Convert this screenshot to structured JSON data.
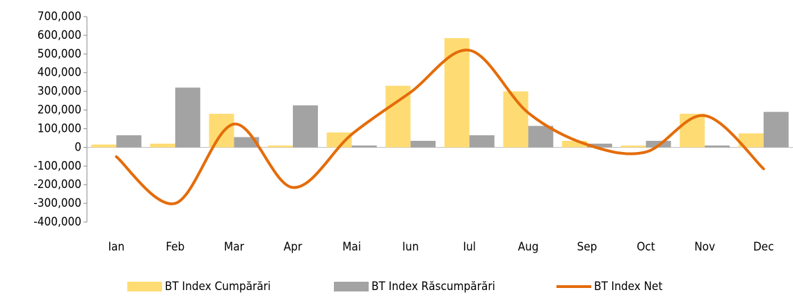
{
  "chart_data": {
    "type": "bar-line",
    "categories": [
      "Ian",
      "Feb",
      "Mar",
      "Apr",
      "Mai",
      "Iun",
      "Iul",
      "Aug",
      "Sep",
      "Oct",
      "Nov",
      "Dec"
    ],
    "series": [
      {
        "name": "BT Index Cumpărări",
        "type": "bar",
        "color": "#ffdc73",
        "values": [
          15000,
          20000,
          180000,
          10000,
          80000,
          330000,
          585000,
          300000,
          35000,
          10000,
          180000,
          75000
        ]
      },
      {
        "name": "BT Index Răscumpărări",
        "type": "bar",
        "color": "#a3a3a3",
        "values": [
          65000,
          320000,
          55000,
          225000,
          10000,
          35000,
          65000,
          115000,
          20000,
          35000,
          10000,
          190000
        ]
      },
      {
        "name": "BT Index Net",
        "type": "line",
        "color": "#e46c0a",
        "values": [
          -50000,
          -300000,
          125000,
          -215000,
          70000,
          295000,
          520000,
          185000,
          15000,
          -25000,
          170000,
          -115000
        ]
      }
    ],
    "ylim": [
      -400000,
      700000
    ],
    "yticks": [
      {
        "value": -400000,
        "label": "-400,000"
      },
      {
        "value": -300000,
        "label": "-300,000"
      },
      {
        "value": -200000,
        "label": "-200,000"
      },
      {
        "value": -100000,
        "label": "-100,000"
      },
      0,
      {
        "value": 100000,
        "label": "100,000"
      },
      {
        "value": 200000,
        "label": "200,000"
      },
      {
        "value": 300000,
        "label": "300,000"
      },
      {
        "value": 400000,
        "label": "400,000"
      },
      {
        "value": 500000,
        "label": "500,000"
      },
      {
        "value": 600000,
        "label": "600,000"
      },
      {
        "value": 700000,
        "label": "700,000"
      }
    ],
    "negative_tick_color": "#ff0000",
    "grid": false,
    "legend": "bottom"
  }
}
